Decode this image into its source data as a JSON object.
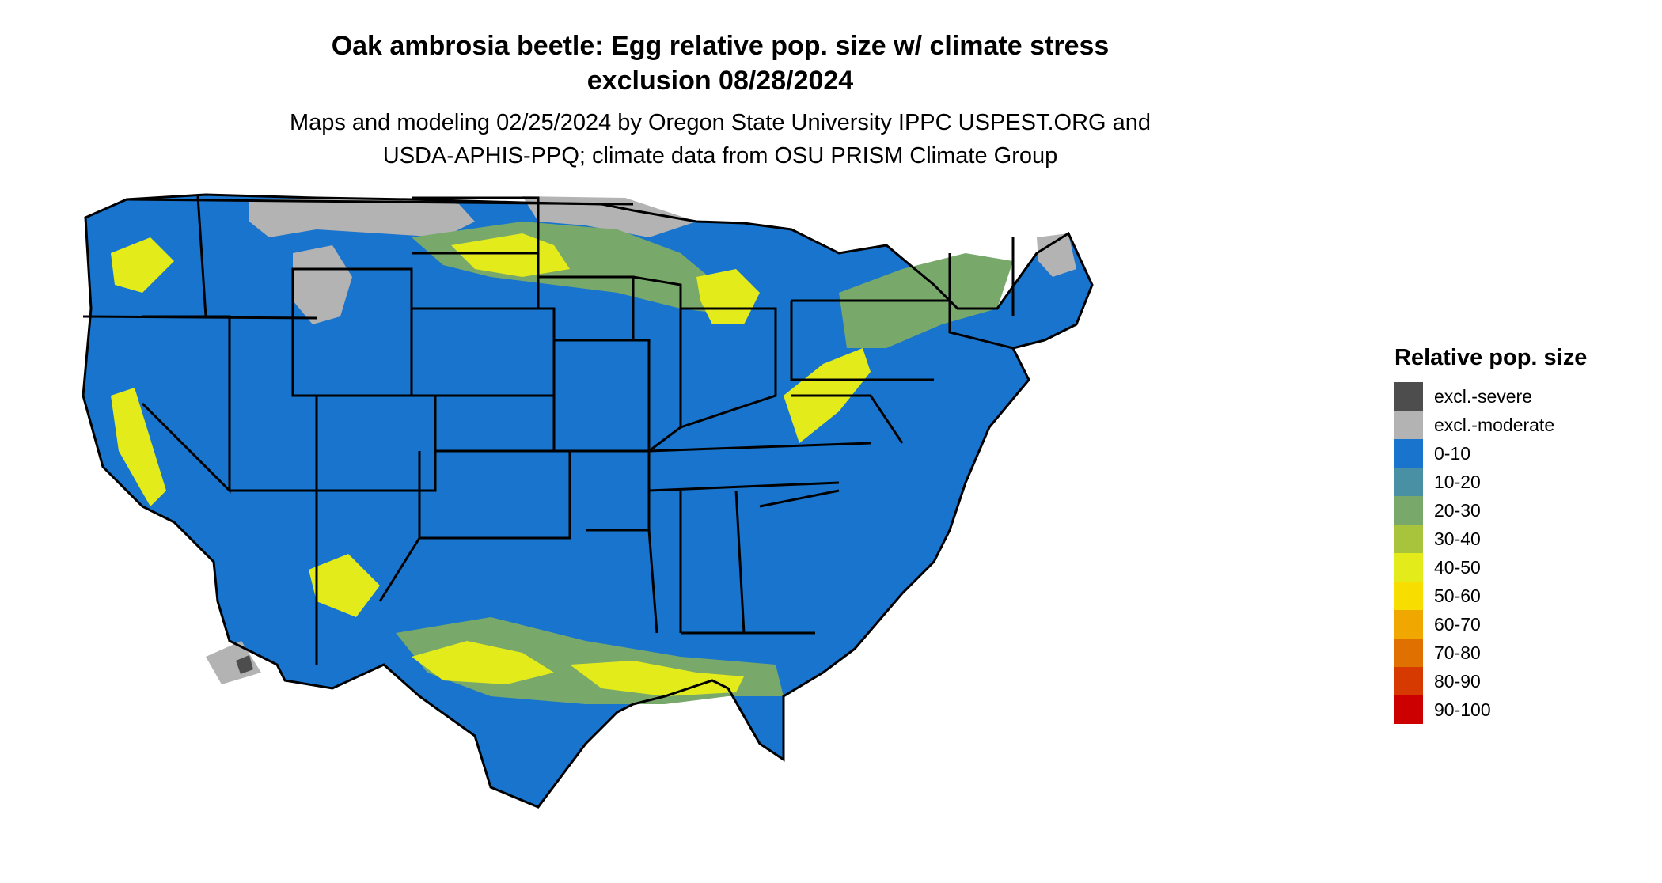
{
  "title_line1": "Oak ambrosia beetle: Egg relative pop. size w/ climate stress",
  "title_line2": "exclusion 08/28/2024",
  "subtitle_line1": "Maps and modeling 02/25/2024 by Oregon State University IPPC USPEST.ORG and",
  "subtitle_line2": "USDA-APHIS-PPQ; climate data from OSU PRISM Climate Group",
  "legend": {
    "title": "Relative pop. size",
    "items": [
      {
        "label": "excl.-severe",
        "color": "#4d4d4d"
      },
      {
        "label": "excl.-moderate",
        "color": "#b3b3b3"
      },
      {
        "label": "0-10",
        "color": "#1874cd"
      },
      {
        "label": "10-20",
        "color": "#4a90a4"
      },
      {
        "label": "20-30",
        "color": "#78a96b"
      },
      {
        "label": "30-40",
        "color": "#a8c43c"
      },
      {
        "label": "40-50",
        "color": "#e3ec1a"
      },
      {
        "label": "50-60",
        "color": "#f7de00"
      },
      {
        "label": "60-70",
        "color": "#f0a800"
      },
      {
        "label": "70-80",
        "color": "#e07000"
      },
      {
        "label": "80-90",
        "color": "#d63a00"
      },
      {
        "label": "90-100",
        "color": "#cc0000"
      }
    ]
  },
  "colors": {
    "excl_moderate": "#b3b3b3",
    "excl_severe": "#4d4d4d",
    "low": "#1874cd",
    "mid": "#78a96b",
    "high": "#e3ec1a",
    "peak": "#f7de00",
    "border": "#000000"
  }
}
